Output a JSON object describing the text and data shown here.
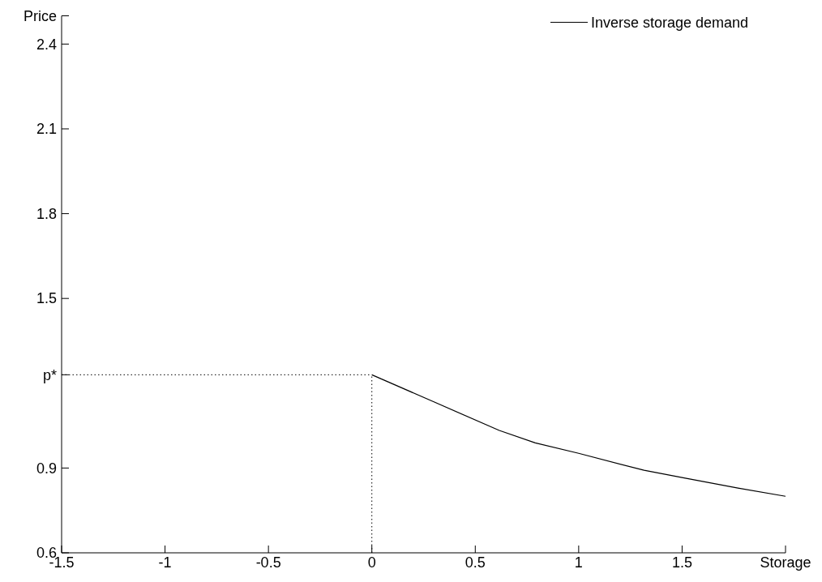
{
  "chart_data": {
    "type": "line",
    "xlabel": "Storage",
    "ylabel": "Price",
    "series": [
      {
        "name": "Inverse storage demand",
        "color": "#000000",
        "x": [
          0,
          0.3,
          0.616,
          0.79,
          1.0,
          1.316,
          1.51,
          1.77,
          2.0
        ],
        "values": [
          1.23,
          1.134,
          1.033,
          0.989,
          0.952,
          0.892,
          0.865,
          0.829,
          0.8
        ]
      }
    ],
    "xlim": [
      -1.5,
      2
    ],
    "xticks": [
      -1.5,
      -1,
      -0.5,
      0,
      0.5,
      1,
      1.5,
      {
        "value": 2,
        "label": null
      }
    ],
    "ylim": [
      0.6,
      2.5
    ],
    "yticks": [
      0.6,
      0.9,
      {
        "value": 1.23,
        "label": "p*"
      },
      1.5,
      1.8,
      2.1,
      2.4,
      {
        "value": 2.5,
        "label": null
      }
    ],
    "ref_lines": [
      {
        "axis": "y",
        "value": 1.23,
        "line_style": "dotted",
        "color": "#000000"
      },
      {
        "axis": "x",
        "value": 0,
        "line_style": "dotted",
        "color": "#000000"
      }
    ],
    "legend": "top right",
    "marker": "none",
    "line_style": "solid",
    "grid": false
  }
}
